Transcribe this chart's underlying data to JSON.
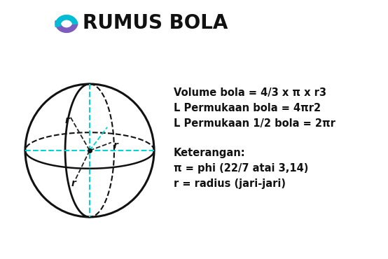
{
  "title": "RUMUS BOLA",
  "background_color": "#ffffff",
  "formula_lines": [
    "Volume bola = 4/3 x π x r3",
    "L Permukaan bola = 4πr2",
    "L Permukaan 1/2 bola = 2πr"
  ],
  "keterangan_title": "Keterangan:",
  "keterangan_lines": [
    "π = phi (22/7 atai 3,14)",
    "r = radius (jari-jari)"
  ],
  "sphere_color": "#111111",
  "dashed_color": "#111111",
  "cyan_color": "#00d4d4",
  "icon_color_top": "#7c5cbf",
  "icon_color_bottom": "#00bcd4"
}
